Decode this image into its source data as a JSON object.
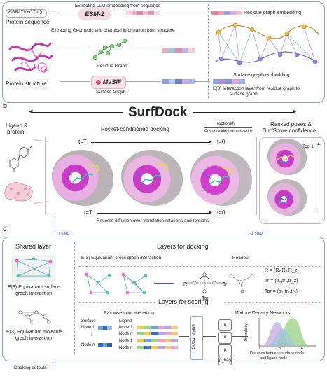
{
  "panel_a": {
    "sequence_text": "EGRLTVYCTVQ",
    "llm_caption": "Extracting LLM embedding from sequence",
    "esm_label": "ESM-2",
    "residue_embedding_label": "Residue graph embedding",
    "protein_sequence_label": "Protein sequence",
    "structure_caption": "Extracting Geometric and chemical information from structure",
    "residue_graph_label": "Residue Graph",
    "masif_label": "MaSIF",
    "surface_graph_label": "Surface Graph",
    "protein_structure_label": "Protein structure",
    "surface_embedding_label": "Surface graph embedding",
    "interaction_label_line1": "E(3) Interaction layer from residue graph to",
    "interaction_label_line2": "surface graph"
  },
  "panel_b": {
    "label": "b",
    "title": "SurfDock",
    "ligand_protein_line1": "Ligand &",
    "ligand_protein_line2": "protein",
    "pocket_docking": "Pocket-conditioned docking",
    "optional": "(optional)",
    "post_docking": "Post-docking minimization",
    "ranked_line1": "Ranked poses &",
    "ranked_line2": "SurfScore confidence",
    "t_T_top": "t=T",
    "t_0_top": "t=0",
    "top1": "Top 1",
    "t_T_bottom": "t=T",
    "t_0_bottom": "t=0",
    "reverse_diffusion": "Reverse diffusion over translation rotations and torsions",
    "t_step": "t step",
    "t_minus_1_step": "t-1 step"
  },
  "panel_c": {
    "label": "c",
    "shared_layer": "Shared layer",
    "layers_docking": "Layers for docking",
    "cross_graph": "E(3) Equivariant cross graph interaction",
    "readout": "Readout",
    "surface_interaction_line1": "E(3) Equivariant surface",
    "surface_interaction_line2": "graph interaction",
    "r_label": "R",
    "tr_label": "Tr",
    "tor_label": "Tor",
    "eq_R": "R = (Rₓ,Rᵧ,R_z)",
    "eq_Tr": "Tr = (trₓ,trᵧ,tr_z)",
    "eq_Tor": "Tor = (tr₁,tr₂,tr₃)",
    "layers_scoring": "Layers for scoring",
    "pairwise": "Pairwise concatenation",
    "mdn": "Mixture Density Networks",
    "surface_col_line1": "Surface",
    "surface_col_line2": "Node 1",
    "node_n_left": "Node n",
    "ligand_col": "Ligand",
    "ligand_rows": [
      "Node 1",
      "Node n",
      "Node 1",
      "Node n"
    ],
    "output_layers": "Output layers",
    "mdn_symbols": [
      "π",
      "σ",
      "μ",
      "p_bag"
    ],
    "molecule_interaction_line1": "E(3) Equivariant molecule",
    "molecule_interaction_line2": "graph interaction",
    "probability_axis": "Probability",
    "distance_axis_line1": "Distance between surface node",
    "distance_axis_line2": "and ligand node",
    "tick_labels": [
      "0",
      "3",
      "6"
    ],
    "docking_outputs": "Docking outputs"
  },
  "colors": {
    "border_blue": "#8aa2bf",
    "esm_pink": "#f3dce3",
    "surface_magenta": "#d63ad0",
    "ligand_yellow": "#e7d84a",
    "graph_teal": "#55b8b0",
    "graph_purple": "#8f6fc6"
  }
}
